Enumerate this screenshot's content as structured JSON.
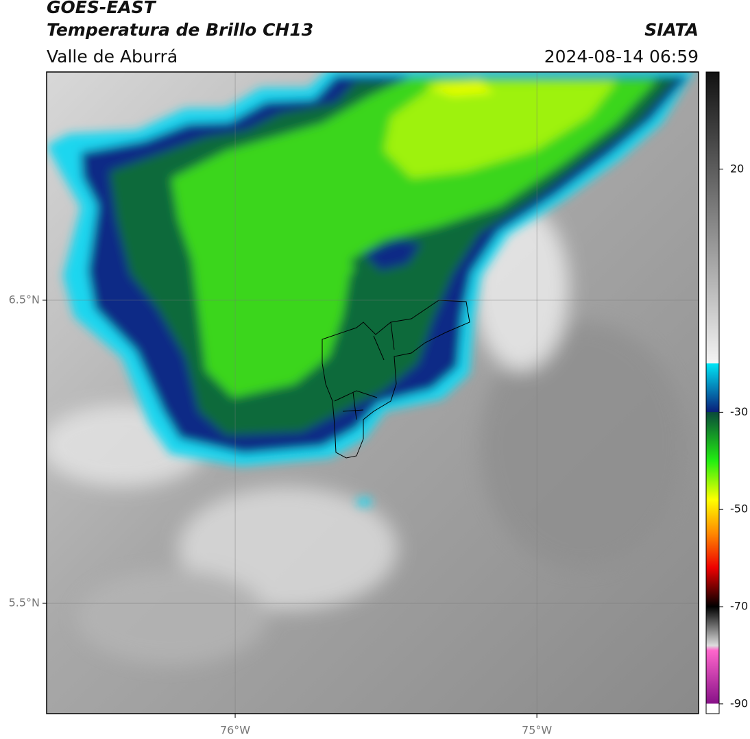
{
  "header": {
    "title": "GOES-EAST",
    "subtitle": "Temperatura de Brillo CH13",
    "source": "SIATA",
    "region": "Valle de Aburrá",
    "datetime": "2024-08-14 06:59"
  },
  "map": {
    "xlim": [
      -76.625,
      -74.464
    ],
    "ylim": [
      5.136,
      7.253
    ],
    "xticks": [
      {
        "value": -76,
        "label": "76°W"
      },
      {
        "value": -75,
        "label": "75°W"
      }
    ],
    "yticks": [
      {
        "value": 6.5,
        "label": "6.5°N"
      },
      {
        "value": 5.5,
        "label": "5.5°N"
      }
    ],
    "grid": true
  },
  "colorbar": {
    "lim": [
      -92,
      40
    ],
    "ticks": [
      20,
      -30,
      -50,
      -70,
      -90
    ],
    "stops": [
      {
        "value": 40,
        "color": "#111111"
      },
      {
        "value": -19.9,
        "color": "#f4f4f4"
      },
      {
        "value": -20,
        "color": "#00e5f5"
      },
      {
        "value": -29.9,
        "color": "#0a1f7a"
      },
      {
        "value": -30,
        "color": "#0a4a3a"
      },
      {
        "value": -40,
        "color": "#22ee11"
      },
      {
        "value": -48,
        "color": "#ffff00"
      },
      {
        "value": -55,
        "color": "#ff8800"
      },
      {
        "value": -62,
        "color": "#ee0000"
      },
      {
        "value": -70,
        "color": "#000000"
      },
      {
        "value": -78,
        "color": "#dddddd"
      },
      {
        "value": -79,
        "color": "#ff66cc"
      },
      {
        "value": -89.9,
        "color": "#881188"
      },
      {
        "value": -90,
        "color": "#ffffff"
      },
      {
        "value": -92,
        "color": "#ffffff"
      }
    ]
  }
}
